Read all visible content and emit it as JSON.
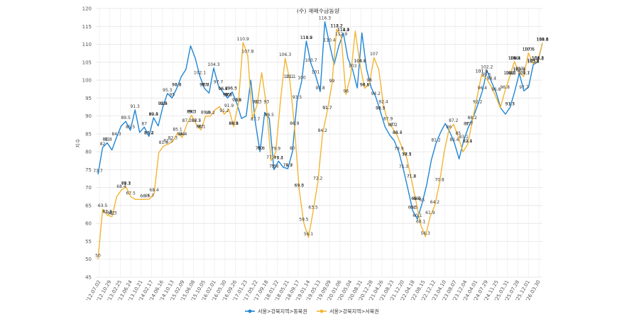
{
  "chart_data": {
    "type": "line",
    "title": "(주) 매매수급동향",
    "ylabel": "지수",
    "xlabel": "",
    "ylim": [
      45,
      120
    ],
    "yticks": [
      45,
      50,
      55,
      60,
      65,
      70,
      75,
      80,
      85,
      90,
      95,
      100,
      105,
      110,
      115,
      120
    ],
    "grid": true,
    "legend_position": "bottom",
    "xtick_labels": [
      "'12.07.02",
      "'12.10.29",
      "'13.02.25",
      "'13.06.24",
      "'13.10.21",
      "'14.02.17",
      "'14.06.16",
      "'14.10.13",
      "'15.02.09",
      "'15.06.08",
      "'15.10.05",
      "'16.02.01",
      "'16.05.30",
      "'16.09.26",
      "'17.01.23",
      "'17.05.22",
      "'17.09.18",
      "'18.01.22",
      "'18.05.21",
      "'18.09.17",
      "'19.01.14",
      "'19.05.13",
      "'19.09.09",
      "'20.01.06",
      "'20.05.04",
      "'20.08.31",
      "'20.12.28",
      "'21.04.26",
      "'21.08.23",
      "'21.12.20",
      "'22.04.18",
      "'22.08.15",
      "'22.12.12",
      "'23.04.10",
      "'23.08.07",
      "'23.12.04",
      "'24.04.01",
      "'24.07.29",
      "'24.11.25",
      "'25.03.31",
      "'25.07.28",
      "'25.12.01",
      "'26.03.30"
    ],
    "series": [
      {
        "name": "서울>강북지역>동북권",
        "color": "#1f86d6",
        "values": [
          73.7,
          81.2,
          82.5,
          80.5,
          84.0,
          87.2,
          88.5,
          86.0,
          91.7,
          85.4,
          86.9,
          84.3,
          89.5,
          87.2,
          92.5,
          96.3,
          95.0,
          97.7,
          101.0,
          103.0,
          109.6,
          106.2,
          101.1,
          97.7,
          96.4,
          103.4,
          98.5,
          96.6,
          95.0,
          96.7,
          93.5,
          89.3,
          90.0,
          100.0,
          88.1,
          80.0,
          91.0,
          89.3,
          75.0,
          77.4,
          75.7,
          75.3,
          80.0,
          94.3,
          99.7,
          110.9,
          104.6,
          101.3,
          96.8,
          116.3,
          110.2,
          104.4,
          109.5,
          113.1,
          106.0,
          103.0,
          97.8,
          113.2,
          103.2,
          98.0,
          95.3,
          91.2,
          87.0,
          84.7,
          83.1,
          79.9,
          74.9,
          69.3,
          63.5,
          61.2,
          65.6,
          70.8,
          77.7,
          82.3,
          85.4,
          87.9,
          85.5,
          82.4,
          78.0,
          83.2,
          86.9,
          89.4,
          93.0,
          96.8,
          102.7,
          99.5,
          96.5,
          92.2,
          90.5,
          92.4,
          96.8,
          101.9,
          97.0,
          98.0,
          104.3,
          105.1,
          110.4
        ]
      },
      {
        "name": "서울>강북지역>서북권",
        "color": "#f2b533",
        "values": [
          50.0,
          64.0,
          62.3,
          61.9,
          67.5,
          69.3,
          70.2,
          67.5,
          66.7,
          66.7,
          66.7,
          66.8,
          68.4,
          79.8,
          81.6,
          82.1,
          82.9,
          85.3,
          84.0,
          87.7,
          90.2,
          87.7,
          86.1,
          90.0,
          89.9,
          91.7,
          92.6,
          90.5,
          91.9,
          87.0,
          93.5,
          110.5,
          107.0,
          89.3,
          93.0,
          102.1,
          93.0,
          77.5,
          79.9,
          94.2,
          106.1,
          100.0,
          87.0,
          69.6,
          60.1,
          56.1,
          63.5,
          71.6,
          85.0,
          91.3,
          98.8,
          114.2,
          111.9,
          96.0,
          101.2,
          113.7,
          104.4,
          97.7,
          99.0,
          106.3,
          103.0,
          93.0,
          88.2,
          86.6,
          84.4,
          81.2,
          78.3,
          72.2,
          66.0,
          59.5,
          56.3,
          62.0,
          65.0,
          71.2,
          80.0,
          86.0,
          87.7,
          84.2,
          80.0,
          82.0,
          88.5,
          95.0,
          101.5,
          100.5,
          98.4,
          95.5,
          92.3,
          97.0,
          101.0,
          105.2,
          102.2,
          101.0,
          107.6,
          104.6,
          105.3,
          110.4
        ]
      }
    ],
    "annotations": [
      "82",
      "82",
      "73.7",
      "77.4",
      "75.4",
      "83.1",
      "84",
      "87.2",
      "88.5",
      "91.7",
      "85.4",
      "84.3",
      "86.9",
      "89.5",
      "87.2",
      "92.5",
      "96.3",
      "95",
      "97.7",
      "101.1",
      "103",
      "109.6",
      "107.8",
      "106.2",
      "103.7",
      "101.1",
      "97.7",
      "96.6",
      "96.4",
      "103.4",
      "98.5",
      "96.6",
      "96.4",
      "95",
      "96.7",
      "93.5",
      "91.7",
      "89.3",
      "100",
      "87",
      "88.1",
      "80",
      "89.3",
      "87.2",
      "75",
      "77.4",
      "75.7",
      "75.3",
      "114.2",
      "111.9",
      "112.9",
      "110.9",
      "104.6",
      "101.3",
      "96.8",
      "116.3",
      "113.7",
      "110.2",
      "104.4",
      "109.5",
      "113.1",
      "111.4",
      "106",
      "103.7",
      "97.8",
      "97.7",
      "113.2",
      "110.4",
      "103.2",
      "98",
      "95.3",
      "91.7",
      "93.4",
      "91.2",
      "87",
      "84.7",
      "83.1",
      "79.9",
      "74.9",
      "69.3",
      "63.5",
      "61.2",
      "65.6",
      "70.8",
      "77.7",
      "82.3",
      "85.4",
      "87.9",
      "85.5",
      "82.4",
      "83.2",
      "86.9",
      "89.4",
      "93",
      "96.8",
      "102.7",
      "104.4",
      "99.5",
      "100.7",
      "96.5",
      "94.6",
      "92.2",
      "90.5",
      "92.4",
      "96.8",
      "101.2",
      "103.4",
      "105.1",
      "101.9",
      "102",
      "104.3",
      "107.6",
      "107",
      "105.3",
      "110.4",
      "50",
      "64",
      "62.3",
      "62.3",
      "61.9",
      "67.5",
      "71.1",
      "69.3",
      "70.2",
      "68.4",
      "66.7",
      "66.7",
      "66.7",
      "68.4",
      "79.8",
      "81.6",
      "81.6",
      "82.5",
      "85.1",
      "85.2",
      "87.7",
      "90.2",
      "87.7",
      "86.1",
      "90",
      "89.9",
      "91.7",
      "92.6",
      "90.5",
      "91.9",
      "92",
      "87",
      "93.5",
      "110.5",
      "107",
      "89.3",
      "93",
      "102.1",
      "100",
      "77.5",
      "79.9",
      "94.2",
      "87",
      "106.1",
      "69.6",
      "63.5",
      "60.1",
      "60.1",
      "58.1",
      "56.1",
      "63.5",
      "71.6",
      "85",
      "91.3",
      "98.8",
      "114.2",
      "111.9",
      "96",
      "101.2",
      "113.7",
      "104.4",
      "97.7",
      "99",
      "106.3",
      "103",
      "93",
      "88.2",
      "86.6",
      "84.4",
      "81.2",
      "78.3",
      "72.2",
      "66",
      "59.5",
      "56.3",
      "62",
      "64.2",
      "65",
      "71.2",
      "80",
      "86",
      "87.7",
      "84.2",
      "82.4",
      "88.5",
      "95",
      "101.5",
      "100.5",
      "98.4",
      "95.5",
      "92.3",
      "97",
      "101",
      "105.2",
      "102.2",
      "101",
      "107.6",
      "104.6",
      "105.3",
      "110.4"
    ]
  }
}
